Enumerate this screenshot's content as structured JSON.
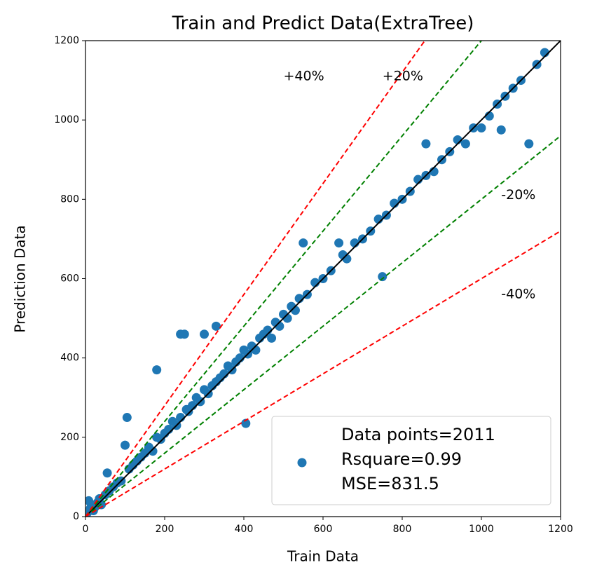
{
  "chart_data": {
    "type": "scatter",
    "title": "Train and Predict Data(ExtraTree)",
    "x_label": "Train Data",
    "y_label": "Prediction Data",
    "xlim": [
      0,
      1200
    ],
    "ylim": [
      0,
      1200
    ],
    "xticks": [
      0,
      200,
      400,
      600,
      800,
      1000,
      1200
    ],
    "yticks": [
      0,
      200,
      400,
      600,
      800,
      1000,
      1200
    ],
    "legend_position": "lower right",
    "series": [
      {
        "name": "Data points=2011\nRsquare=0.99\nMSE=831.5",
        "color": "#1f77b4",
        "x": [
          5,
          8,
          12,
          15,
          20,
          25,
          30,
          35,
          40,
          50,
          55,
          60,
          70,
          80,
          90,
          100,
          105,
          110,
          120,
          130,
          140,
          150,
          160,
          170,
          180,
          180,
          190,
          200,
          210,
          220,
          230,
          240,
          240,
          250,
          255,
          260,
          270,
          280,
          290,
          300,
          300,
          310,
          320,
          330,
          330,
          340,
          350,
          360,
          370,
          380,
          390,
          400,
          405,
          410,
          420,
          430,
          440,
          450,
          460,
          470,
          480,
          490,
          500,
          510,
          520,
          530,
          540,
          550,
          560,
          580,
          600,
          620,
          640,
          650,
          660,
          680,
          700,
          720,
          740,
          750,
          760,
          780,
          800,
          820,
          840,
          860,
          860,
          880,
          900,
          920,
          940,
          960,
          980,
          1000,
          1020,
          1040,
          1050,
          1060,
          1080,
          1100,
          1120,
          1140,
          1160
        ],
        "values": [
          10,
          40,
          20,
          30,
          15,
          25,
          35,
          45,
          30,
          55,
          110,
          65,
          75,
          85,
          90,
          180,
          250,
          120,
          130,
          140,
          150,
          160,
          175,
          165,
          370,
          200,
          195,
          210,
          220,
          240,
          230,
          460,
          250,
          460,
          270,
          265,
          280,
          300,
          290,
          460,
          320,
          310,
          330,
          480,
          340,
          350,
          360,
          380,
          370,
          390,
          400,
          420,
          235,
          410,
          430,
          420,
          450,
          460,
          470,
          450,
          490,
          480,
          510,
          500,
          530,
          520,
          550,
          690,
          560,
          590,
          600,
          620,
          690,
          660,
          650,
          690,
          700,
          720,
          750,
          605,
          760,
          790,
          800,
          820,
          850,
          860,
          940,
          870,
          900,
          920,
          950,
          940,
          980,
          980,
          1010,
          1040,
          975,
          1060,
          1080,
          1100,
          940,
          1140,
          1170
        ]
      }
    ],
    "reference_lines": [
      {
        "slope": 1,
        "color": "#000000",
        "dashed": false
      },
      {
        "slope": 1.2,
        "color": "#008000",
        "dashed": true
      },
      {
        "slope": 0.8,
        "color": "#008000",
        "dashed": true
      },
      {
        "slope": 1.4,
        "color": "#ff0000",
        "dashed": true
      },
      {
        "slope": 0.6,
        "color": "#ff0000",
        "dashed": true
      }
    ],
    "annotations": [
      {
        "text": "+40%",
        "x": 500,
        "y": 1110,
        "color": "#ff0000"
      },
      {
        "text": "+20%",
        "x": 750,
        "y": 1110,
        "color": "#008000"
      },
      {
        "text": "-20%",
        "x": 1050,
        "y": 810,
        "color": "#008000"
      },
      {
        "text": "-40%",
        "x": 1050,
        "y": 560,
        "color": "#ff0000"
      }
    ]
  }
}
